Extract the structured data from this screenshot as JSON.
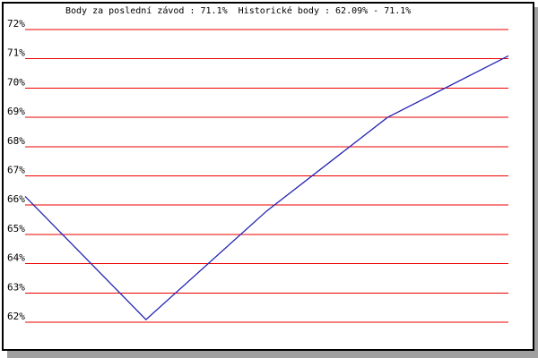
{
  "window": {
    "background": "#ffffff",
    "frame_color": "#000000",
    "shadow_color": "#a0a0a0"
  },
  "chart_data": {
    "type": "line",
    "title": "Body za poslední závod : 71.1%  Historické body : 62.09% - 71.1%",
    "stats": {
      "last_race_points": "71.1%",
      "historic_min": "62.09%",
      "historic_max": "71.1%"
    },
    "y_ticks": [
      "72%",
      "71%",
      "70%",
      "69%",
      "68%",
      "67%",
      "66%",
      "65%",
      "64%",
      "63%",
      "62%"
    ],
    "ylim": [
      62,
      72
    ],
    "values": [
      66.3,
      62.09,
      65.8,
      69.0,
      71.1
    ],
    "xlabel": "",
    "ylabel": "",
    "x_axis_labels": "none (5 evenly spaced points)",
    "grid": "horizontal lines every 1%",
    "legend": "none",
    "colors": {
      "gridline": "#ee0000",
      "series": "#2626b2",
      "text": "#000000"
    }
  }
}
